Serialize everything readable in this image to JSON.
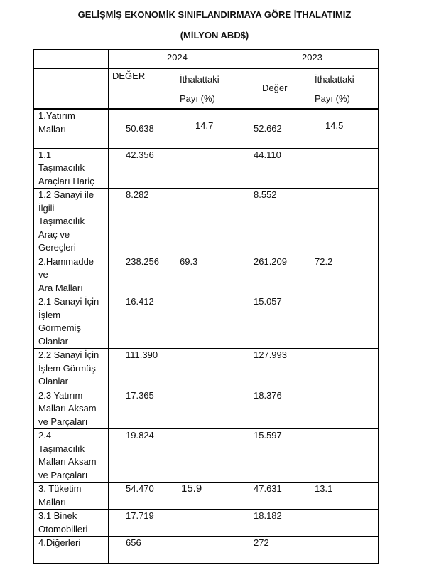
{
  "title": "GELİŞMİŞ EKONOMİK SINIFLANDIRMAYA GÖRE İTHALATIMIZ",
  "subtitle": "(MİLYON ABD$)",
  "table": {
    "years": [
      "2024",
      "2023"
    ],
    "subheaders": {
      "value_2024": "DEĞER",
      "share_2024_line1": "İthalattaki",
      "share_2024_line2": "Payı (%)",
      "value_2023": "Değer",
      "share_2023_line1": "İthalattaki",
      "share_2023_line2": "Payı (%)"
    },
    "rows": [
      {
        "label": "1.Yatırım\nMalları",
        "v2024": "50.638",
        "p2024": "14.7",
        "v2023": "52.662",
        "p2023": "14.5"
      },
      {
        "label": "1.1\nTaşımacılık\nAraçları Hariç",
        "v2024": "42.356",
        "p2024": "",
        "v2023": "44.110",
        "p2023": ""
      },
      {
        "label": "1.2 Sanayi ile\nİlgili\nTaşımacılık\nAraç ve\nGereçleri",
        "v2024": "8.282",
        "p2024": "",
        "v2023": "8.552",
        "p2023": ""
      },
      {
        "label": "2.Hammadde\nve\nAra Malları",
        "v2024": "238.256",
        "p2024": "69.3",
        "v2023": "261.209",
        "p2023": "72.2"
      },
      {
        "label": "2.1 Sanayi İçin\nİşlem\nGörmemiş\nOlanlar",
        "v2024": "16.412",
        "p2024": "",
        "v2023": "15.057",
        "p2023": ""
      },
      {
        "label": "2.2 Sanayi İçin\nİşlem Görmüş\nOlanlar",
        "v2024": "111.390",
        "p2024": "",
        "v2023": "127.993",
        "p2023": ""
      },
      {
        "label": "2.3 Yatırım\nMalları Aksam\nve Parçaları",
        "v2024": "17.365",
        "p2024": "",
        "v2023": "18.376",
        "p2023": ""
      },
      {
        "label": "2.4\nTaşımacılık\nMalları Aksam\nve Parçaları",
        "v2024": "19.824",
        "p2024": "",
        "v2023": "15.597",
        "p2023": ""
      },
      {
        "label": "3. Tüketim\nMalları",
        "v2024": "54.470",
        "p2024": "15.9",
        "v2023": "47.631",
        "p2023": "13.1"
      },
      {
        "label": "3.1 Binek\nOtomobilleri",
        "v2024": "17.719",
        "p2024": "",
        "v2023": "18.182",
        "p2023": ""
      },
      {
        "label": "4.Diğerleri",
        "v2024": "656",
        "p2024": "",
        "v2023": "272",
        "p2023": ""
      }
    ]
  }
}
